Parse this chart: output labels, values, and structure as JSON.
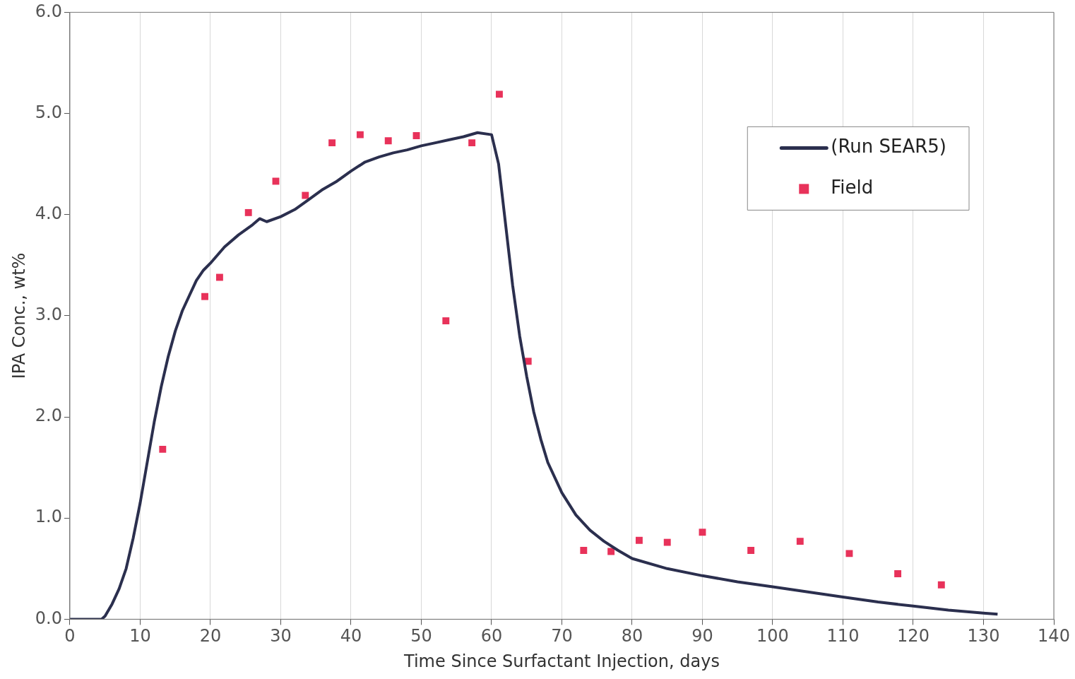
{
  "chart_data": {
    "type": "line",
    "xlabel": "Time Since Surfactant Injection, days",
    "ylabel": "IPA Conc., wt%",
    "xlim": [
      0,
      140
    ],
    "xticks": [
      0,
      10,
      20,
      30,
      40,
      50,
      60,
      70,
      80,
      90,
      100,
      110,
      120,
      130,
      140
    ],
    "ylim": [
      0,
      6
    ],
    "yticks": [
      {
        "value": 0,
        "label": "0.0"
      },
      {
        "value": 1,
        "label": "1.0"
      },
      {
        "value": 2,
        "label": "2.0"
      },
      {
        "value": 3,
        "label": "3.0"
      },
      {
        "value": 4,
        "label": "4.0"
      },
      {
        "value": 5,
        "label": "5.0"
      },
      {
        "value": 6,
        "label": "6.0"
      }
    ],
    "grid": "x",
    "legend": "top right",
    "series": [
      {
        "name": "(Run SEAR5)",
        "color": "#2b2f4e",
        "marker": "none",
        "line_style": "solid",
        "x": [
          0,
          4.5,
          5,
          6,
          7,
          8,
          9,
          10,
          11,
          12,
          13,
          14,
          15,
          16,
          17,
          18,
          19,
          20,
          22,
          24,
          26,
          27,
          28,
          30,
          32,
          34,
          36,
          38,
          40,
          42,
          44,
          46,
          48,
          50,
          52,
          54,
          56,
          58,
          60,
          61,
          62,
          63,
          64,
          65,
          66,
          67,
          68,
          70,
          72,
          74,
          76,
          78,
          80,
          85,
          90,
          95,
          100,
          105,
          110,
          115,
          120,
          125,
          130,
          132
        ],
        "values": [
          0,
          0,
          0.03,
          0.15,
          0.3,
          0.5,
          0.8,
          1.15,
          1.55,
          1.95,
          2.3,
          2.6,
          2.85,
          3.05,
          3.2,
          3.35,
          3.45,
          3.52,
          3.68,
          3.8,
          3.9,
          3.96,
          3.93,
          3.98,
          4.05,
          4.15,
          4.25,
          4.33,
          4.43,
          4.52,
          4.57,
          4.61,
          4.64,
          4.68,
          4.71,
          4.74,
          4.77,
          4.81,
          4.79,
          4.5,
          3.9,
          3.3,
          2.8,
          2.4,
          2.05,
          1.78,
          1.55,
          1.25,
          1.03,
          0.88,
          0.77,
          0.68,
          0.6,
          0.5,
          0.43,
          0.37,
          0.32,
          0.27,
          0.22,
          0.17,
          0.13,
          0.09,
          0.06,
          0.05
        ]
      },
      {
        "name": "Field",
        "type": "scatter",
        "color": "#e8325a",
        "marker": "square",
        "x": [
          13.2,
          19.2,
          21.3,
          25.4,
          29.3,
          33.5,
          37.3,
          41.3,
          45.3,
          49.3,
          53.5,
          57.2,
          61.1,
          65.2,
          73.1,
          77,
          81,
          85,
          90,
          96.9,
          103.9,
          110.9,
          117.8,
          124
        ],
        "values": [
          1.68,
          3.19,
          3.38,
          4.02,
          4.33,
          4.19,
          4.71,
          4.79,
          4.73,
          4.78,
          2.95,
          4.71,
          5.19,
          2.55,
          0.68,
          0.67,
          0.78,
          0.76,
          0.86,
          0.68,
          0.77,
          0.65,
          0.45,
          0.34
        ]
      }
    ]
  }
}
